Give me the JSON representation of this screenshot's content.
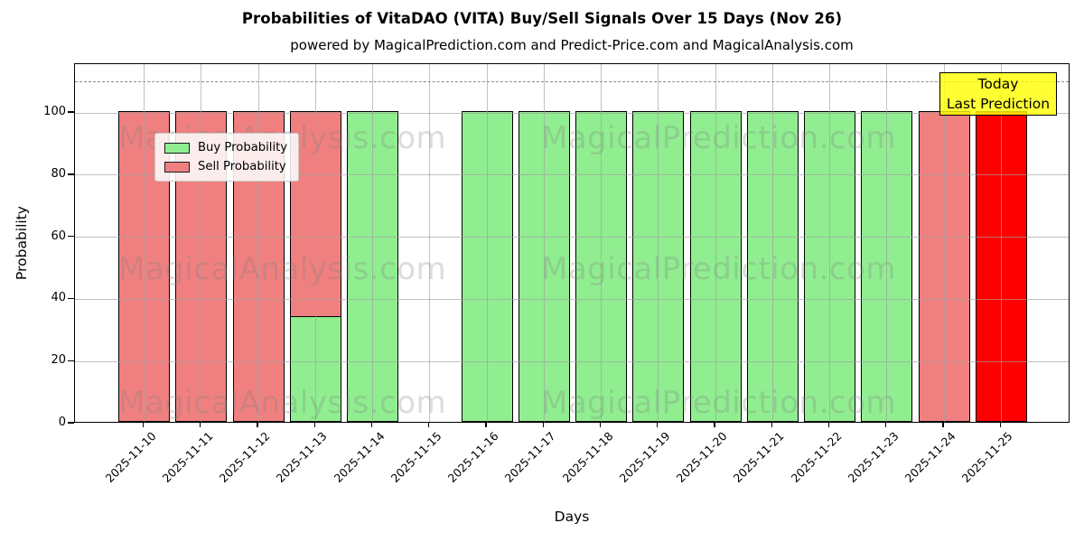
{
  "chart_data": {
    "type": "bar",
    "title": "Probabilities of VitaDAO (VITA) Buy/Sell Signals Over 15 Days (Nov 26)",
    "subtitle": "powered by MagicalPrediction.com and Predict-Price.com and MagicalAnalysis.com",
    "xlabel": "Days",
    "ylabel": "Probability",
    "categories": [
      "2025-11-10",
      "2025-11-11",
      "2025-11-12",
      "2025-11-13",
      "2025-11-14",
      "2025-11-15",
      "2025-11-16",
      "2025-11-17",
      "2025-11-18",
      "2025-11-19",
      "2025-11-20",
      "2025-11-21",
      "2025-11-22",
      "2025-11-23",
      "2025-11-24",
      "2025-11-25"
    ],
    "series": [
      {
        "name": "Buy Probability",
        "color": "#90ee90",
        "values": [
          0,
          0,
          0,
          34,
          100,
          0,
          100,
          100,
          100,
          100,
          100,
          100,
          100,
          100,
          0,
          0
        ]
      },
      {
        "name": "Sell Probability",
        "color": "#f08080",
        "values": [
          100,
          100,
          100,
          100,
          0,
          0,
          0,
          0,
          0,
          0,
          0,
          0,
          0,
          0,
          100,
          100
        ]
      }
    ],
    "bar_color_overrides": [
      {
        "index": 15,
        "series": "Sell Probability",
        "color": "#ff0000"
      }
    ],
    "ylim": [
      0,
      115.7
    ],
    "yticks": [
      0,
      20,
      40,
      60,
      80,
      100
    ],
    "grid": true,
    "legend_position": "upper left",
    "reference_line": {
      "y": 110,
      "style": "dashed",
      "color": "#8c8c8c"
    },
    "annotation_box": {
      "lines": [
        "Today",
        "Last Prediction"
      ],
      "bg_color": "#ffff00",
      "border_color": "#000000"
    },
    "watermarks": {
      "left": "MagicalAnalysis.com",
      "right": "MagicalPrediction.com"
    },
    "bar_edge_color": "#000000"
  }
}
